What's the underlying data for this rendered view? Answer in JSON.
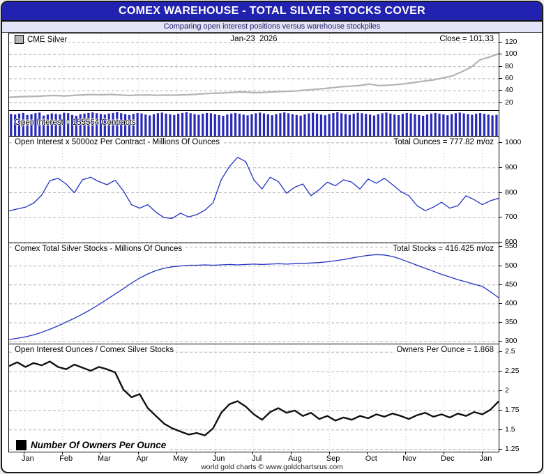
{
  "header": {
    "title": "COMEX WAREHOUSE - TOTAL SILVER STOCKS COVER",
    "subtitle": "Comparing open interest positions versus warehouse stockpiles"
  },
  "footer": "world gold charts © www.goldchartsrus.com",
  "colors": {
    "title_bg": "#2222b0",
    "subtitle_bg": "#e4e4f6",
    "price_line": "#b3b3b3",
    "blue_line": "#2233c0",
    "bar_blue": "#2a2ab8",
    "owners_line": "#111111",
    "grid": "#b0b0b0"
  },
  "xaxis": {
    "tick_labels": [
      "Jan",
      "Feb",
      "Mar",
      "Apr",
      "May",
      "Jun",
      "Jul",
      "Aug",
      "Sep",
      "Oct",
      "Nov",
      "Dec",
      "Jan"
    ],
    "xlim_months": [
      -0.4,
      12.43
    ]
  },
  "chart_data": [
    {
      "id": "cme-silver-price",
      "type": "line",
      "legend": "CME Silver",
      "date_label": "Jan-23  2026",
      "value_label": "Close = 101.33",
      "color": "#b3b3b3",
      "ylim": [
        8,
        135
      ],
      "yticks": [
        20,
        40,
        60,
        80,
        100,
        120
      ],
      "values": [
        29.3,
        30.1,
        30.6,
        31.0,
        31.8,
        32.2,
        31.6,
        32.4,
        33.3,
        33.8,
        33.4,
        34.0,
        33.2,
        32.3,
        32.9,
        33.2,
        32.6,
        33.1,
        32.8,
        33.4,
        34.0,
        35.1,
        35.9,
        36.3,
        37.2,
        38.1,
        37.4,
        36.9,
        37.8,
        38.6,
        38.9,
        39.8,
        41.0,
        42.3,
        43.6,
        45.2,
        46.8,
        47.6,
        48.9,
        51.2,
        48.6,
        49.3,
        50.4,
        52.0,
        54.1,
        56.3,
        58.2,
        61.5,
        64.8,
        71.5,
        79.0,
        91.5,
        96.0,
        101.33
      ]
    },
    {
      "id": "open-interest-contracts",
      "type": "bar",
      "label": "Open Interest = 155564 Contracts",
      "unit": "thousand contracts",
      "color": "#2a2ab8",
      "ylim": [
        0,
        185
      ],
      "yticks": [],
      "values": [
        162,
        158,
        165,
        170,
        155,
        160,
        168,
        172,
        150,
        158,
        166,
        163,
        159,
        171,
        168,
        155,
        149,
        160,
        165,
        170,
        173,
        168,
        162,
        157,
        165,
        170,
        175,
        168,
        160,
        155,
        162,
        170,
        166,
        158,
        152,
        160,
        168,
        172,
        165,
        159,
        155,
        163,
        170,
        174,
        168,
        161,
        156,
        164,
        170,
        167,
        160,
        154,
        148,
        158,
        165,
        170,
        163,
        157,
        152,
        160,
        167,
        172,
        166,
        159,
        153,
        161,
        168,
        173,
        167,
        160,
        155,
        150,
        159,
        166,
        171,
        164,
        158,
        153,
        162,
        169,
        174,
        167,
        161,
        156,
        164,
        171,
        168,
        162,
        157,
        151,
        160,
        167,
        172,
        165,
        158,
        154,
        163,
        170,
        166,
        160,
        155,
        149,
        158,
        165,
        170,
        164,
        159,
        153,
        161,
        168,
        172,
        166,
        160,
        156,
        164,
        169,
        163,
        158,
        152,
        155.6
      ]
    },
    {
      "id": "open-interest-ounces",
      "type": "line",
      "label": "Open Interest x 5000oz Per Contract - Millions Of Ounces",
      "value_label": "Total Ounces = 777.82 m/oz",
      "color": "#2233c0",
      "ylim": [
        600,
        1025
      ],
      "yticks": [
        600,
        700,
        800,
        900,
        1000
      ],
      "values": [
        727,
        735,
        742,
        758,
        790,
        848,
        858,
        835,
        800,
        852,
        862,
        845,
        832,
        850,
        808,
        752,
        738,
        752,
        722,
        700,
        697,
        718,
        703,
        712,
        730,
        760,
        852,
        905,
        942,
        925,
        852,
        815,
        862,
        845,
        798,
        822,
        835,
        788,
        812,
        842,
        828,
        852,
        842,
        815,
        855,
        838,
        858,
        832,
        805,
        788,
        748,
        728,
        742,
        762,
        738,
        748,
        788,
        772,
        752,
        768,
        777.8
      ]
    },
    {
      "id": "comex-total-silver-stocks",
      "type": "line",
      "label": "Comex Total Silver Stocks - Millions Of Ounces",
      "value_label": "Total Stocks = 416.425 m/oz",
      "color": "#2233c0",
      "ylim": [
        295,
        560
      ],
      "yticks": [
        300,
        350,
        400,
        450,
        500,
        550
      ],
      "values": [
        306,
        309,
        313,
        318,
        325,
        333,
        342,
        352,
        362,
        373,
        385,
        398,
        412,
        426,
        440,
        455,
        468,
        479,
        488,
        494,
        498,
        500,
        502,
        502,
        503,
        502,
        503,
        504,
        503,
        504,
        505,
        504,
        505,
        506,
        505,
        506,
        507,
        508,
        509,
        511,
        514,
        517,
        521,
        525,
        528,
        530,
        529,
        525,
        518,
        510,
        502,
        494,
        486,
        478,
        471,
        464,
        458,
        452,
        446,
        432,
        416.4
      ]
    },
    {
      "id": "owners-per-ounce",
      "type": "line",
      "label": "Open Interest Ounces / Comex Silver Stocks",
      "value_label": "Owners Per Ounce = 1.868",
      "legend": "Number Of Owners Per Ounce",
      "color": "#111111",
      "ylim": [
        1.22,
        2.6
      ],
      "yticks": [
        1.25,
        1.5,
        1.75,
        2,
        2.25,
        2.5
      ],
      "values": [
        2.32,
        2.37,
        2.31,
        2.36,
        2.33,
        2.38,
        2.31,
        2.28,
        2.34,
        2.3,
        2.26,
        2.31,
        2.28,
        2.24,
        2.02,
        1.92,
        1.96,
        1.78,
        1.68,
        1.58,
        1.52,
        1.48,
        1.44,
        1.46,
        1.43,
        1.52,
        1.72,
        1.83,
        1.87,
        1.8,
        1.7,
        1.63,
        1.73,
        1.78,
        1.72,
        1.75,
        1.68,
        1.72,
        1.64,
        1.68,
        1.62,
        1.66,
        1.63,
        1.68,
        1.65,
        1.7,
        1.67,
        1.71,
        1.68,
        1.64,
        1.69,
        1.72,
        1.67,
        1.7,
        1.66,
        1.71,
        1.68,
        1.73,
        1.7,
        1.76,
        1.868
      ]
    }
  ]
}
